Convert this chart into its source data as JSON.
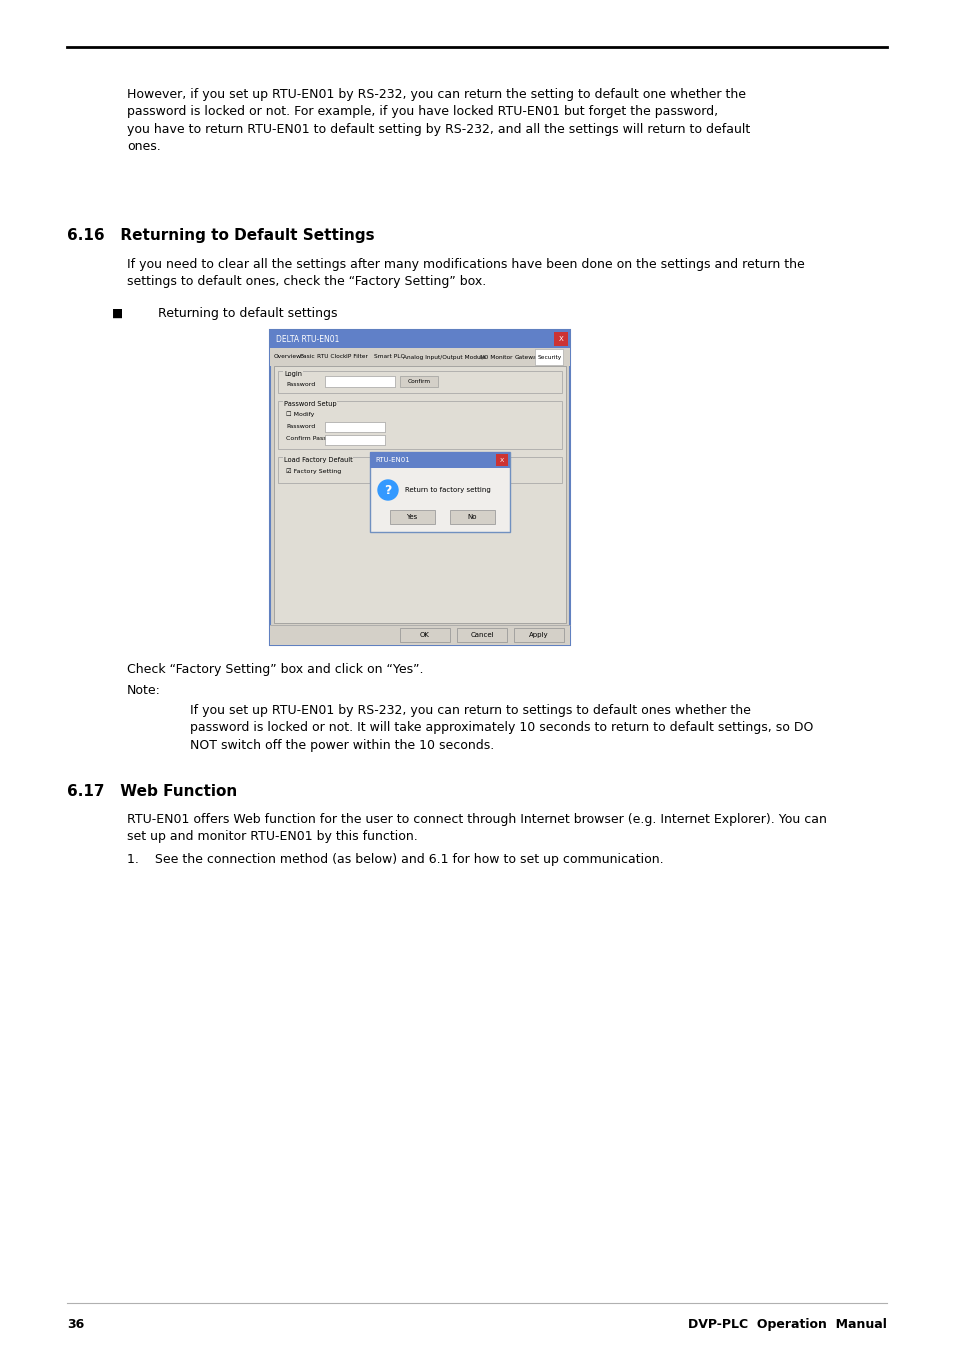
{
  "page_bg": "#ffffff",
  "page_number": "36",
  "footer_right": "DVP-PLC  Operation  Manual",
  "para1_lines": [
    "However, if you set up RTU-EN01 by RS-232, you can return the setting to default one whether the",
    "password is locked or not. For example, if you have locked RTU-EN01 but forget the password,",
    "you have to return RTU-EN01 to default setting by RS-232, and all the settings will return to default",
    "ones."
  ],
  "section_616_title": "6.16   Returning to Default Settings",
  "section_616_body_lines": [
    "If you need to clear all the settings after many modifications have been done on the settings and return the",
    "settings to default ones, check the “Factory Setting” box."
  ],
  "bullet_text": "Returning to default settings",
  "check_caption": "Check “Factory Setting” box and click on “Yes”.",
  "note_label": "Note:",
  "note_body_lines": [
    "If you set up RTU-EN01 by RS-232, you can return to settings to default ones whether the",
    "password is locked or not. It will take approximately 10 seconds to return to default settings, so DO",
    "NOT switch off the power within the 10 seconds."
  ],
  "section_617_title": "6.17   Web Function",
  "section_617_body_lines": [
    "RTU-EN01 offers Web function for the user to connect through Internet browser (e.g. Internet Explorer). You can",
    "set up and monitor RTU-EN01 by this function."
  ],
  "numbered_item": "1.    See the connection method (as below) and 6.1 for how to set up communication."
}
